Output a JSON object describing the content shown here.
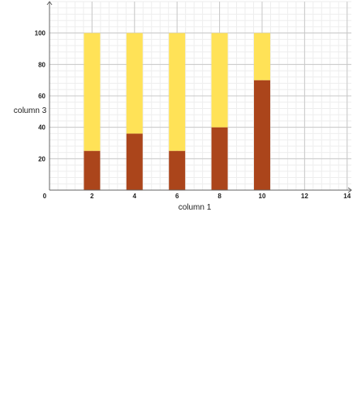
{
  "chart_data": {
    "type": "bar",
    "stacked": true,
    "title": "",
    "xlabel": "column 1",
    "ylabel": "column 3",
    "x": [
      2,
      4,
      6,
      8,
      10
    ],
    "series": [
      {
        "values": [
          25,
          36,
          25,
          40,
          70
        ],
        "color": "#ab451b"
      },
      {
        "values": [
          75,
          64,
          75,
          60,
          30
        ],
        "color": "#ffe257"
      }
    ],
    "xlim": [
      0,
      14.2
    ],
    "ylim": [
      0,
      120
    ],
    "xticks": [
      0,
      2,
      4,
      6,
      8,
      10,
      12,
      14
    ],
    "yticks": [
      20,
      40,
      60,
      80,
      100
    ],
    "grid": true,
    "minor_grid": true
  }
}
